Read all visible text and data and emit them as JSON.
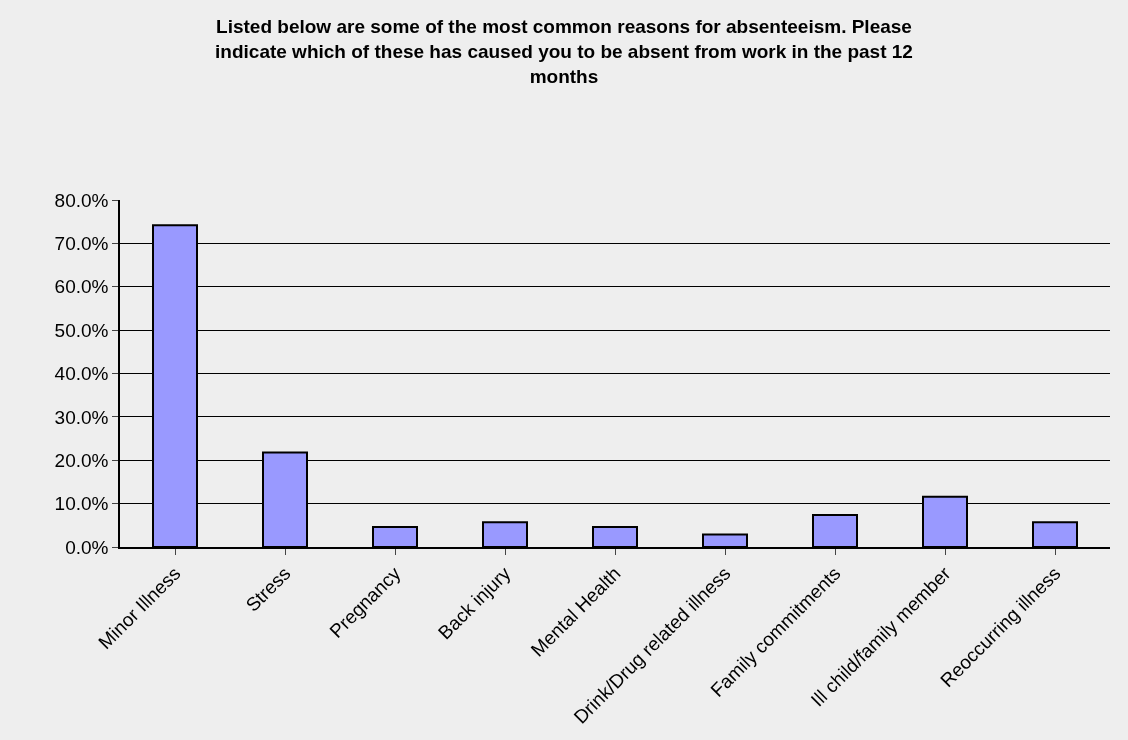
{
  "chart_data": {
    "type": "bar",
    "title": "Listed below are some of the most common reasons for absenteeism. Please indicate which of these has caused you to be absent from work in the past 12 months",
    "categories": [
      "Minor Illness",
      "Stress",
      "Pregnancy",
      "Back injury",
      "Mental Health",
      "Drink/Drug related illness",
      "Family commitments",
      "Ill child/family member",
      "Reoccurring illness"
    ],
    "values": [
      74.2,
      21.8,
      4.6,
      5.7,
      4.6,
      2.9,
      7.4,
      11.6,
      5.7
    ],
    "color": "#9999ff",
    "ylim": [
      0,
      80
    ],
    "yticks": [
      {
        "value": 0,
        "label": "0.0%"
      },
      {
        "value": 10,
        "label": "10.0%"
      },
      {
        "value": 20,
        "label": "20.0%"
      },
      {
        "value": 30,
        "label": "30.0%"
      },
      {
        "value": 40,
        "label": "40.0%"
      },
      {
        "value": 50,
        "label": "50.0%"
      },
      {
        "value": 60,
        "label": "60.0%"
      },
      {
        "value": 70,
        "label": "70.0%"
      },
      {
        "value": 80,
        "label": "80.0%"
      }
    ],
    "grid": "y",
    "legend": false
  }
}
